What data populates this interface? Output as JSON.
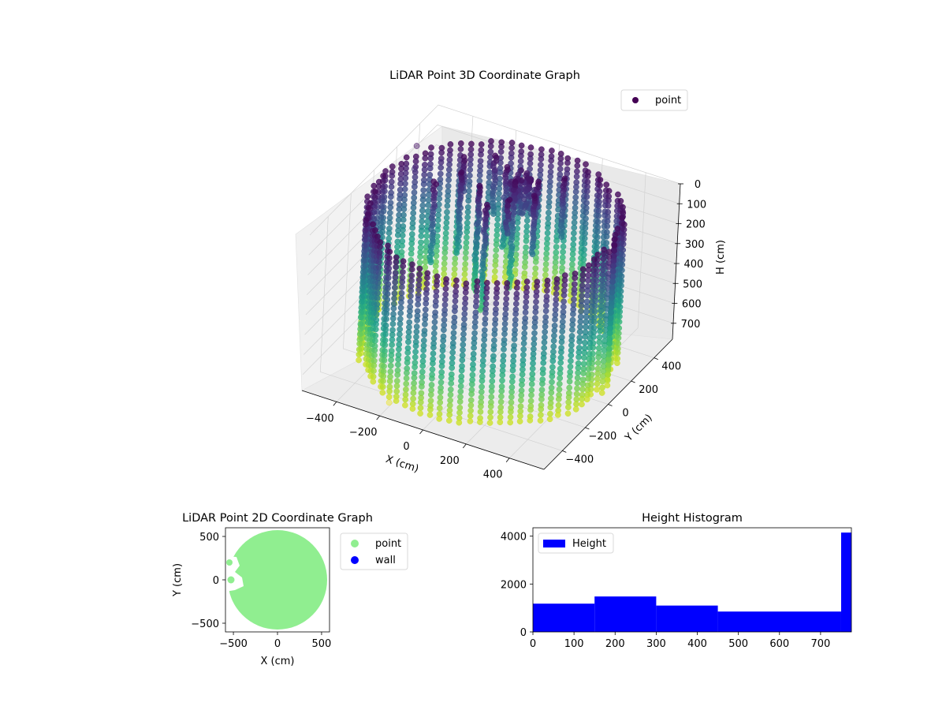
{
  "figure": {
    "background": "#ffffff"
  },
  "chart_data": [
    {
      "type": "scatter",
      "projection": "3d",
      "title": "LiDAR Point 3D Coordinate Graph",
      "xlabel": "X (cm)",
      "ylabel": "Y (cm)",
      "zlabel": "H (cm)",
      "x_ticks": [
        "−400",
        "−200",
        "0",
        "200",
        "400"
      ],
      "y_ticks": [
        "−400",
        "−200",
        "0",
        "200",
        "400"
      ],
      "z_ticks": [
        "0",
        "100",
        "200",
        "300",
        "400",
        "500",
        "600",
        "700"
      ],
      "xlim": [
        -560,
        560
      ],
      "ylim": [
        -560,
        560
      ],
      "zlim": [
        780,
        0
      ],
      "z_inverted": true,
      "colormap": "viridis",
      "color_by": "height",
      "grid": true,
      "legend": {
        "position": "top-right",
        "entries": [
          {
            "label": "point",
            "color": "#440154"
          }
        ]
      },
      "series": [
        {
          "name": "point",
          "description_shape": "cylindrical wall of points, radius ~520 cm, height 0-720 cm, with interior column clusters",
          "outliers": [
            {
              "x": -520,
              "y": 300,
              "h": 40
            },
            {
              "x": -500,
              "y": 250,
              "h": 120
            },
            {
              "x": -450,
              "y": -150,
              "h": 700
            },
            {
              "x": -200,
              "y": -480,
              "h": 760
            }
          ]
        }
      ]
    },
    {
      "type": "scatter",
      "title": "LiDAR Point 2D Coordinate Graph",
      "xlabel": "X (cm)",
      "ylabel": "Y (cm)",
      "x_ticks": [
        -500,
        0,
        500
      ],
      "y_ticks": [
        -500,
        0,
        500
      ],
      "xlim": [
        -590,
        590
      ],
      "ylim": [
        -600,
        600
      ],
      "legend": {
        "position": "outside right",
        "entries": [
          {
            "label": "point",
            "color": "#90ee90"
          },
          {
            "label": "wall",
            "color": "#0000ff"
          }
        ]
      },
      "series": [
        {
          "name": "point",
          "color": "#90ee90",
          "shape": "filled disc radius ~560 cm centred at origin with small gap near x=-520,y=0"
        },
        {
          "name": "wall",
          "color": "#0000ff",
          "points": []
        }
      ]
    },
    {
      "type": "bar",
      "subtype": "histogram",
      "title": "Height Histogram",
      "xlabel": "",
      "ylabel": "",
      "xlim": [
        0,
        775
      ],
      "ylim": [
        0,
        4350
      ],
      "x_ticks": [
        0,
        100,
        200,
        300,
        400,
        500,
        600,
        700
      ],
      "y_ticks": [
        0,
        2000,
        4000
      ],
      "color": "#0000ff",
      "legend": {
        "position": "upper left",
        "entries": [
          {
            "label": "Height",
            "color": "#0000ff"
          }
        ]
      },
      "bins": [
        {
          "start": 0,
          "end": 150,
          "value": 1180
        },
        {
          "start": 150,
          "end": 300,
          "value": 1480
        },
        {
          "start": 300,
          "end": 450,
          "value": 1100
        },
        {
          "start": 450,
          "end": 750,
          "value": 850
        },
        {
          "start": 750,
          "end": 775,
          "value": 4150
        }
      ]
    }
  ]
}
